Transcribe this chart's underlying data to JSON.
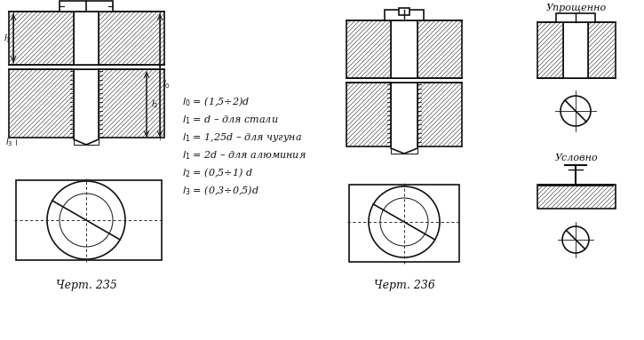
{
  "bg_color": "#ffffff",
  "line_color": "#111111",
  "title235": "Черт. 235",
  "title236": "Черт. 236",
  "label_upro": "Упрощенно",
  "label_usl": "Условно",
  "formulas": [
    "l₀ = (1,5÷2)d",
    "l₁ = d – для стали",
    "l₁ = 1,25d – для чугуна",
    "l₁ = 2d – для алюминия",
    "l₂ = (0,5÷1) d",
    "l₃ = (0,3÷0,5)d"
  ],
  "fig_width": 7.25,
  "fig_height": 3.83
}
